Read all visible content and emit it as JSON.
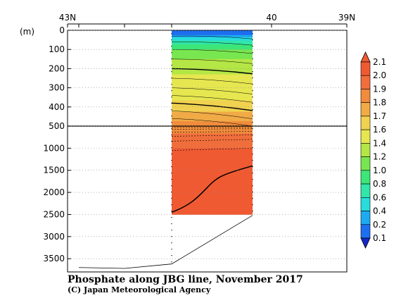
{
  "chart_data": {
    "type": "heatmap",
    "title": "Phosphate along JBG line, November 2017",
    "credit": "(C) Japan Meteorological Agency",
    "y_unit_label": "(m)",
    "x_ticks": [
      "43N",
      "40",
      "39N"
    ],
    "depth_ticks_upper": [
      "0",
      "100",
      "200",
      "300",
      "400",
      "500"
    ],
    "depth_ticks_lower": [
      "1000",
      "1500",
      "2000",
      "2500",
      "3000",
      "3500"
    ],
    "depth_upper_range": [
      0,
      500
    ],
    "depth_lower_range": [
      500,
      3800
    ],
    "colorbar": {
      "levels": [
        "0.1",
        "0.2",
        "0.4",
        "0.6",
        "0.8",
        "1.0",
        "1.2",
        "1.4",
        "1.6",
        "1.7",
        "1.8",
        "1.9",
        "2.0",
        "2.1"
      ],
      "colors": [
        "#1428c8",
        "#1e6ef0",
        "#1eaaf0",
        "#28dcdc",
        "#32e6aa",
        "#3ce678",
        "#78e650",
        "#b4e646",
        "#e6e650",
        "#f0d250",
        "#f0aa46",
        "#f08c3c",
        "#f06e3c",
        "#f05a32",
        "#f05a32"
      ]
    },
    "section": {
      "depth_layers": [
        {
          "depth": 0,
          "value": 0.1
        },
        {
          "depth": 25,
          "value": 0.2
        },
        {
          "depth": 60,
          "value": 0.7
        },
        {
          "depth": 100,
          "value": 1.0
        },
        {
          "depth": 150,
          "value": 1.2
        },
        {
          "depth": 200,
          "value": 1.35
        },
        {
          "depth": 260,
          "value": 1.45
        },
        {
          "depth": 330,
          "value": 1.55
        },
        {
          "depth": 400,
          "value": 1.65
        },
        {
          "depth": 450,
          "value": 1.75
        },
        {
          "depth": 500,
          "value": 1.85
        },
        {
          "depth": 1000,
          "value": 2.0
        },
        {
          "depth": 2500,
          "value": 2.05
        }
      ],
      "bottom_depth": 2500
    },
    "bathymetry_depths": [
      3700,
      3720,
      3620,
      2520
    ]
  }
}
